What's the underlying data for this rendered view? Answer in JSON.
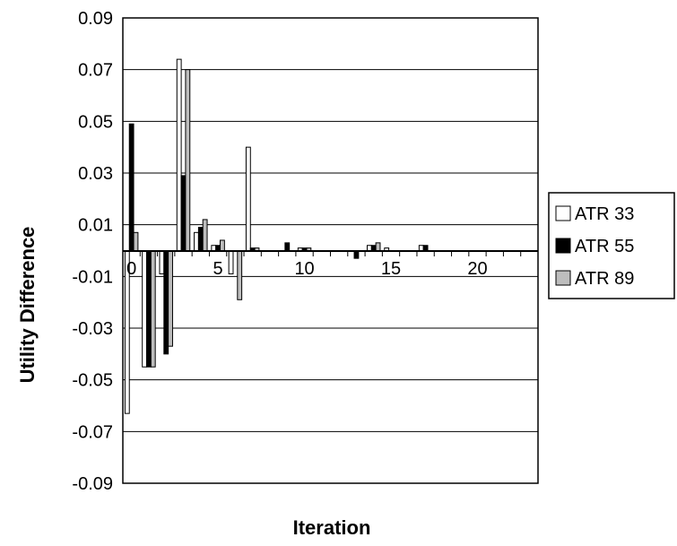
{
  "chart_data": {
    "type": "bar",
    "xlabel": "Iteration",
    "ylabel": "Utility Difference",
    "ylim": [
      -0.09,
      0.09
    ],
    "y_ticks": [
      "0.09",
      "0.07",
      "0.05",
      "0.03",
      "0.01",
      "-0.01",
      "-0.03",
      "-0.05",
      "-0.07",
      "-0.09"
    ],
    "y_tick_values": [
      0.09,
      0.07,
      0.05,
      0.03,
      0.01,
      -0.01,
      -0.03,
      -0.05,
      -0.07,
      -0.09
    ],
    "x_ticks": [
      "0",
      "5",
      "10",
      "15",
      "20"
    ],
    "x_tick_values": [
      0,
      5,
      10,
      15,
      20
    ],
    "x_range": [
      0,
      24
    ],
    "grid": true,
    "legend_position": "right",
    "categories": [
      0,
      1,
      2,
      3,
      4,
      5,
      6,
      7,
      8,
      9,
      10,
      11,
      12,
      13,
      14,
      15,
      16,
      17,
      18,
      19,
      20,
      21,
      22,
      23
    ],
    "series": [
      {
        "name": "ATR 33",
        "fill": "#ffffff",
        "values": [
          -0.063,
          -0.045,
          -0.009,
          0.074,
          0.007,
          0.002,
          -0.009,
          0.04,
          0,
          0,
          0.001,
          0,
          0,
          0,
          0.002,
          0.001,
          0,
          0.002,
          0,
          0,
          0,
          0,
          0,
          0
        ]
      },
      {
        "name": "ATR 55",
        "fill": "#000000",
        "values": [
          0.049,
          -0.045,
          -0.04,
          0.029,
          0.009,
          0.002,
          0,
          0.001,
          0,
          0.003,
          0.001,
          0,
          0,
          -0.003,
          0.002,
          0,
          0,
          0.002,
          0,
          0,
          0,
          0,
          0,
          0
        ]
      },
      {
        "name": "ATR 89",
        "fill": "#bdbdbd",
        "values": [
          0.007,
          -0.045,
          -0.037,
          0.07,
          0.012,
          0.004,
          -0.019,
          0.001,
          0,
          0,
          0.001,
          0,
          0,
          0,
          0.003,
          0,
          0,
          0,
          0,
          0,
          0,
          0,
          0,
          0
        ]
      }
    ]
  }
}
